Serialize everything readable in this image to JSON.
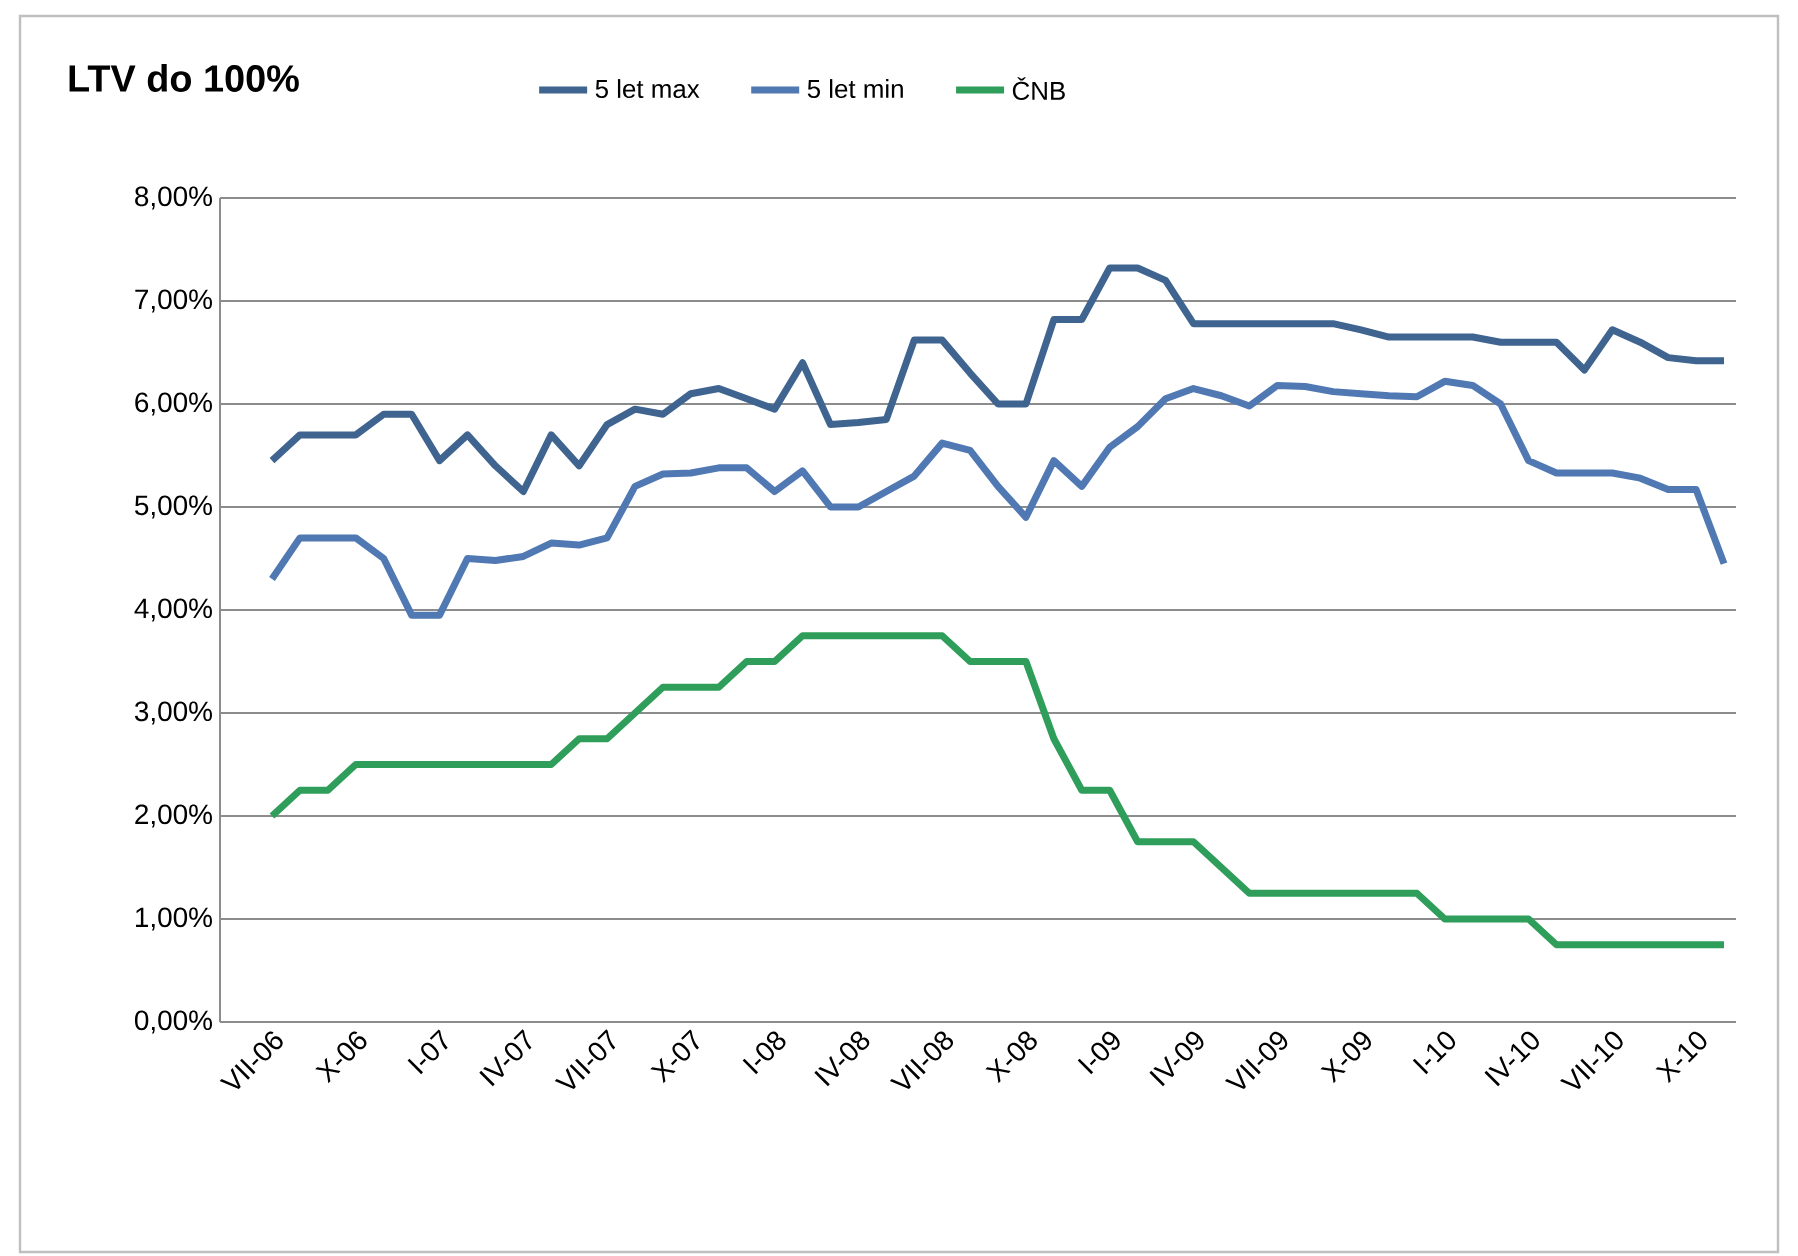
{
  "chart_data": {
    "type": "line",
    "title": "LTV do 100%",
    "categories": [
      "VII-06",
      null,
      null,
      "X-06",
      null,
      null,
      "I-07",
      null,
      null,
      "IV-07",
      null,
      null,
      "VII-07",
      null,
      null,
      "X-07",
      null,
      null,
      "I-08",
      null,
      null,
      "IV-08",
      null,
      null,
      "VII-08",
      null,
      null,
      "X-08",
      null,
      null,
      "I-09",
      null,
      null,
      "IV-09",
      null,
      null,
      "VII-09",
      null,
      null,
      "X-09",
      null,
      null,
      "I-10",
      null,
      null,
      "IV-10",
      null,
      null,
      "VII-10",
      null,
      null,
      "X-10",
      null
    ],
    "series": [
      {
        "name": "5 let max",
        "color": "#3f6490",
        "values": [
          5.45,
          5.7,
          5.7,
          5.7,
          5.9,
          5.9,
          5.45,
          5.7,
          5.4,
          5.15,
          5.7,
          5.4,
          5.8,
          5.95,
          5.9,
          6.1,
          6.15,
          6.05,
          5.95,
          6.4,
          5.8,
          5.82,
          5.85,
          6.62,
          6.62,
          6.3,
          6.0,
          6.0,
          6.82,
          6.82,
          7.32,
          7.32,
          7.2,
          6.78,
          6.78,
          6.78,
          6.78,
          6.78,
          6.78,
          6.72,
          6.65,
          6.65,
          6.65,
          6.65,
          6.6,
          6.6,
          6.6,
          6.33,
          6.72,
          6.6,
          6.45,
          6.42,
          6.42
        ]
      },
      {
        "name": "5 let min",
        "color": "#5079b4",
        "values": [
          4.3,
          4.7,
          4.7,
          4.7,
          4.5,
          3.95,
          3.95,
          4.5,
          4.48,
          4.52,
          4.65,
          4.63,
          4.7,
          5.2,
          5.32,
          5.33,
          5.38,
          5.38,
          5.15,
          5.35,
          5.0,
          5.0,
          5.15,
          5.3,
          5.62,
          5.55,
          5.2,
          4.9,
          5.45,
          5.2,
          5.58,
          5.78,
          6.05,
          6.15,
          6.08,
          5.98,
          6.18,
          6.17,
          6.12,
          6.1,
          6.08,
          6.07,
          6.22,
          6.18,
          6.0,
          5.45,
          5.33,
          5.33,
          5.33,
          5.28,
          5.17,
          5.17,
          4.45
        ]
      },
      {
        "name": "ČNB",
        "color": "#2e9e5a",
        "values": [
          2.0,
          2.25,
          2.25,
          2.5,
          2.5,
          2.5,
          2.5,
          2.5,
          2.5,
          2.5,
          2.5,
          2.75,
          2.75,
          3.0,
          3.25,
          3.25,
          3.25,
          3.5,
          3.5,
          3.75,
          3.75,
          3.75,
          3.75,
          3.75,
          3.75,
          3.5,
          3.5,
          3.5,
          2.75,
          2.25,
          2.25,
          1.75,
          1.75,
          1.75,
          1.5,
          1.25,
          1.25,
          1.25,
          1.25,
          1.25,
          1.25,
          1.25,
          1.0,
          1.0,
          1.0,
          1.0,
          0.75,
          0.75,
          0.75,
          0.75,
          0.75,
          0.75,
          0.75
        ]
      }
    ],
    "ylim": [
      0,
      8
    ],
    "yticks": [
      {
        "value": 0,
        "label": "0,00%"
      },
      {
        "value": 1,
        "label": "1,00%"
      },
      {
        "value": 2,
        "label": "2,00%"
      },
      {
        "value": 3,
        "label": "3,00%"
      },
      {
        "value": 4,
        "label": "4,00%"
      },
      {
        "value": 5,
        "label": "5,00%"
      },
      {
        "value": 6,
        "label": "6,00%"
      },
      {
        "value": 7,
        "label": "7,00%"
      },
      {
        "value": 8,
        "label": "8,00%"
      }
    ],
    "grid": "y",
    "legend": "top"
  }
}
